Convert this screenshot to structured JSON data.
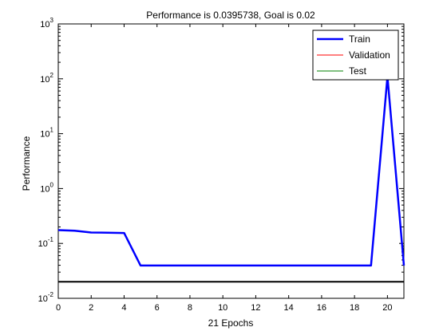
{
  "chart_data": {
    "type": "line",
    "title": "Performance is 0.0395738, Goal is 0.02",
    "xlabel": "21 Epochs",
    "ylabel": "Performance",
    "xlim": [
      0,
      21
    ],
    "ylim": [
      0.01,
      1000
    ],
    "yscale": "log",
    "x_ticks": [
      0,
      2,
      4,
      6,
      8,
      10,
      12,
      14,
      16,
      18,
      20
    ],
    "y_ticks": [
      {
        "value": 0.01,
        "base": "10",
        "exp": "-2"
      },
      {
        "value": 0.1,
        "base": "10",
        "exp": "-1"
      },
      {
        "value": 1,
        "base": "10",
        "exp": "0"
      },
      {
        "value": 10,
        "base": "10",
        "exp": "1"
      },
      {
        "value": 100,
        "base": "10",
        "exp": "2"
      },
      {
        "value": 1000,
        "base": "10",
        "exp": "3"
      }
    ],
    "grid": false,
    "legend_position": "top-right",
    "goal": 0.02,
    "series": [
      {
        "name": "Train",
        "color": "#0000ff",
        "x": [
          0,
          1,
          2,
          3,
          4,
          5,
          6,
          7,
          8,
          9,
          10,
          11,
          12,
          13,
          14,
          15,
          16,
          17,
          18,
          19,
          20,
          21
        ],
        "y": [
          0.175,
          0.17,
          0.158,
          0.157,
          0.155,
          0.0396,
          0.0396,
          0.0396,
          0.0396,
          0.0396,
          0.0396,
          0.0396,
          0.0396,
          0.0396,
          0.0396,
          0.0396,
          0.0396,
          0.0396,
          0.0396,
          0.0396,
          110,
          0.0396
        ]
      },
      {
        "name": "Validation",
        "color": "#ff0000",
        "x": [],
        "y": []
      },
      {
        "name": "Test",
        "color": "#008000",
        "x": [],
        "y": []
      }
    ]
  }
}
